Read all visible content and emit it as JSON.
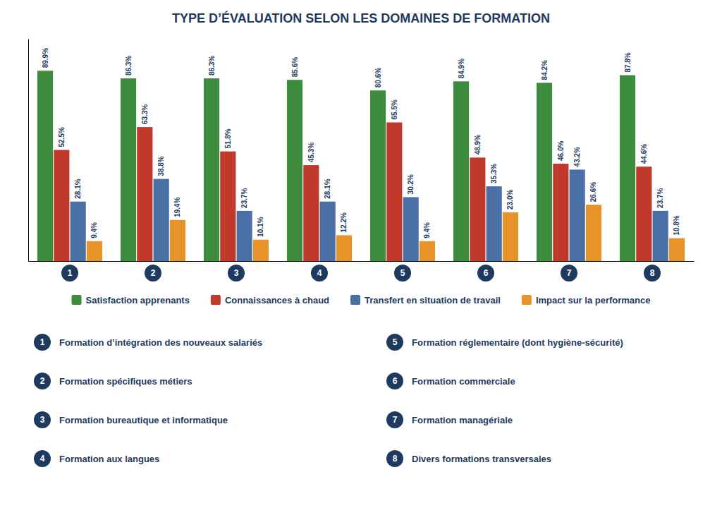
{
  "chart_data": {
    "type": "bar",
    "title": "TYPE D’ÉVALUATION SELON LES DOMAINES DE FORMATION",
    "categories": [
      "1",
      "2",
      "3",
      "4",
      "5",
      "6",
      "7",
      "8"
    ],
    "series": [
      {
        "name": "Satisfaction apprenants",
        "color": "#3d8b3d",
        "values": [
          89.9,
          86.3,
          86.3,
          85.6,
          80.6,
          84.9,
          84.2,
          87.8
        ],
        "value_labels": [
          "89.9%",
          "86.3%",
          "86.3%",
          "85.6%",
          "80.6%",
          "84.9%",
          "84.2%",
          "87.8%"
        ]
      },
      {
        "name": "Connaissances à chaud",
        "color": "#c0392b",
        "values": [
          52.5,
          63.3,
          51.8,
          45.3,
          65.5,
          48.9,
          46.0,
          44.6
        ],
        "value_labels": [
          "52.5%",
          "63.3%",
          "51.8%",
          "45.3%",
          "65.5%",
          "48.9%",
          "46.0%",
          "44.6%"
        ]
      },
      {
        "name": "Transfert en situation de travail",
        "color": "#4a6fa5",
        "values": [
          28.1,
          38.8,
          23.7,
          28.1,
          30.2,
          35.3,
          43.2,
          23.7
        ],
        "value_labels": [
          "28.1%",
          "38.8%",
          "23.7%",
          "28.1%",
          "30.2%",
          "35.3%",
          "43.2%",
          "23.7%"
        ]
      },
      {
        "name": "Impact sur la performance",
        "color": "#e8922a",
        "values": [
          9.4,
          19.4,
          10.1,
          12.2,
          9.4,
          23.0,
          26.6,
          10.8
        ],
        "value_labels": [
          "9.4%",
          "19.4%",
          "10.1%",
          "12.2%",
          "9.4%",
          "23.0%",
          "26.6%",
          "10.8%"
        ]
      }
    ],
    "ylim": [
      0,
      105
    ],
    "grid": false,
    "legend": "bottom",
    "data_labels": true,
    "tick_labels": "x",
    "annotations": [
      {
        "number": "1",
        "text": "Formation d’intégration des nouveaux salariés"
      },
      {
        "number": "2",
        "text": "Formation spécifiques métiers"
      },
      {
        "number": "3",
        "text": "Formation bureautique et informatique"
      },
      {
        "number": "4",
        "text": "Formation aux langues"
      },
      {
        "number": "5",
        "text": "Formation réglementaire (dont hygiène-sécurité)"
      },
      {
        "number": "6",
        "text": "Formation commerciale"
      },
      {
        "number": "7",
        "text": "Formation managériale"
      },
      {
        "number": "8",
        "text": "Divers formations transversales"
      }
    ]
  }
}
